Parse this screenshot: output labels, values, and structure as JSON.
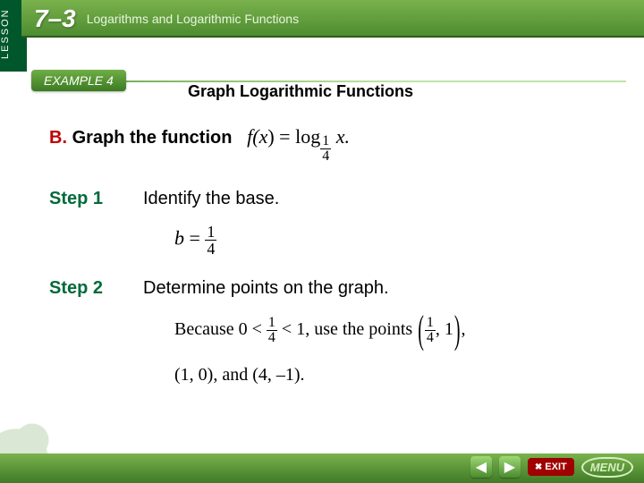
{
  "header": {
    "lesson_tab": "LESSON",
    "section_number": "7–3",
    "lesson_title": "Logarithms and Logarithmic Functions",
    "example_label": "EXAMPLE 4",
    "page_title": "Graph Logarithmic Functions"
  },
  "body": {
    "part_letter": "B.",
    "part_text": "Graph the function",
    "function_f": "f",
    "function_x": "x",
    "function_eq": ") = log",
    "function_base_num": "1",
    "function_base_den": "4",
    "function_dot": "x.",
    "step1_label": "Step 1",
    "step1_text": "Identify the base.",
    "eq1_b": "b",
    "eq1_eq": " = ",
    "eq1_num": "1",
    "eq1_den": "4",
    "step2_label": "Step 2",
    "step2_text": "Determine points on the graph.",
    "because_pre": "Because 0 < ",
    "because_num": "1",
    "because_den": "4",
    "because_mid": " < 1, use the points ",
    "pt1_num": "1",
    "pt1_den": "4",
    "pt1_y": ", 1",
    "points_line": "(1, 0), and (4, –1)."
  },
  "nav": {
    "prev": "◀",
    "next": "▶",
    "exit": "EXIT",
    "menu": "MENU"
  },
  "colors": {
    "brand_green": "#4b8a2f",
    "dark_green": "#036a3a",
    "accent_red": "#c00000",
    "exit_red": "#a00000"
  }
}
